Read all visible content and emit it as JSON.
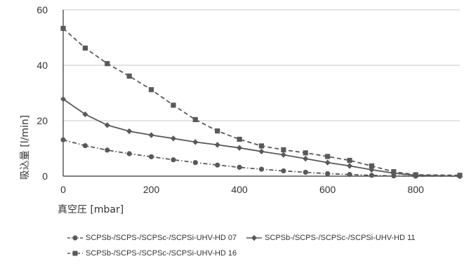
{
  "chart_data": {
    "type": "line",
    "xlabel": "真空圧 [mbar]",
    "ylabel": "吸込量 [l/min]",
    "xlim": [
      0,
      900
    ],
    "ylim": [
      0,
      60
    ],
    "xticks": [
      0,
      200,
      400,
      600,
      800
    ],
    "yticks": [
      0,
      20,
      40,
      60
    ],
    "grid": "horizontal",
    "legend_position": "bottom",
    "series": [
      {
        "name": "SCPSb-/SCPS-/SCPSc-/SCPSi-UHV-HD 07",
        "marker": "circle",
        "line": "dash-dot",
        "color": "#595959",
        "x": [
          0,
          50,
          100,
          150,
          200,
          250,
          300,
          350,
          400,
          450,
          500,
          550,
          600,
          650,
          700,
          750,
          800,
          900
        ],
        "y": [
          13.1,
          11.0,
          9.4,
          8.1,
          7.0,
          5.9,
          4.9,
          4.0,
          3.2,
          2.5,
          1.9,
          1.4,
          0.9,
          0.6,
          0.3,
          0.1,
          0.0,
          0.0
        ]
      },
      {
        "name": "SCPSb-/SCPS-/SCPSc-/SCPSi-UHV-HD 11",
        "marker": "diamond",
        "line": "solid",
        "color": "#595959",
        "x": [
          0,
          50,
          100,
          150,
          200,
          250,
          300,
          350,
          400,
          450,
          500,
          550,
          600,
          650,
          700,
          750,
          800,
          900
        ],
        "y": [
          27.8,
          22.3,
          18.4,
          16.2,
          14.8,
          13.6,
          12.3,
          11.3,
          10.2,
          8.9,
          7.7,
          6.3,
          4.9,
          3.7,
          2.3,
          1.1,
          0.3,
          0.0
        ]
      },
      {
        "name": "SCPSb-/SCPS-/SCPSc-/SCPSi-UHV-HD 16",
        "marker": "square",
        "line": "dashed",
        "color": "#595959",
        "x": [
          0,
          50,
          100,
          150,
          200,
          250,
          300,
          350,
          400,
          450,
          500,
          550,
          600,
          650,
          700,
          750,
          800,
          900
        ],
        "y": [
          53.3,
          46.2,
          40.6,
          36.1,
          31.2,
          25.6,
          20.4,
          16.3,
          13.3,
          10.9,
          9.5,
          8.4,
          7.1,
          5.7,
          3.7,
          1.6,
          0.5,
          0.3
        ]
      }
    ]
  }
}
